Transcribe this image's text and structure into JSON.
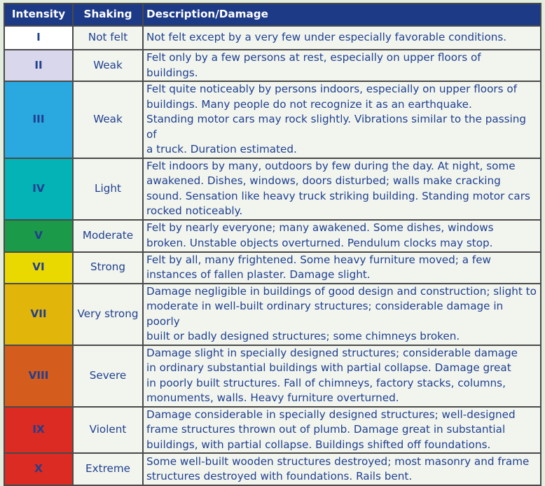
{
  "headers": {
    "intensity": "Intensity",
    "shaking": "Shaking",
    "description": "Description/Damage"
  },
  "rows": [
    {
      "intensity": "I",
      "shaking": "Not felt",
      "color": "#ffffff",
      "description": "Not felt except by a very few under especially favorable conditions."
    },
    {
      "intensity": "II",
      "shaking": "Weak",
      "color": "#d9d7ec",
      "description": "Felt only by a few persons at rest, especially on upper floors of\nbuildings."
    },
    {
      "intensity": "III",
      "shaking": "Weak",
      "color": "#2aa8e0",
      "description": "Felt quite noticeably by persons indoors, especially on upper floors of\nbuildings. Many people do not recognize it as an earthquake.\nStanding motor cars may rock slightly. Vibrations similar to the passing of\na truck. Duration estimated."
    },
    {
      "intensity": "IV",
      "shaking": "Light",
      "color": "#04b3b6",
      "description": "Felt indoors by many, outdoors by few during the day. At night, some\nawakened. Dishes, windows, doors disturbed; walls make cracking\nsound. Sensation like heavy truck striking building. Standing motor cars\nrocked noticeably."
    },
    {
      "intensity": "V",
      "shaking": "Moderate",
      "color": "#1b9a49",
      "description": "Felt by nearly everyone; many awakened. Some dishes, windows\nbroken. Unstable objects overturned. Pendulum clocks may stop."
    },
    {
      "intensity": "VI",
      "shaking": "Strong",
      "color": "#e9d900",
      "description": "Felt by all, many frightened. Some heavy furniture moved; a few\ninstances of fallen plaster. Damage slight."
    },
    {
      "intensity": "VII",
      "shaking": "Very strong",
      "color": "#e2b50b",
      "description": "Damage negligible in buildings of good design and construction; slight to\nmoderate in well-built ordinary structures; considerable damage in poorly\nbuilt or badly designed structures; some chimneys broken."
    },
    {
      "intensity": "VIII",
      "shaking": "Severe",
      "color": "#d45c1d",
      "description": "Damage slight in specially designed structures; considerable damage\nin ordinary substantial buildings with partial collapse. Damage great\nin poorly built structures. Fall of chimneys, factory stacks, columns,\nmonuments, walls. Heavy furniture overturned."
    },
    {
      "intensity": "IX",
      "shaking": "Violent",
      "color": "#db2b22",
      "description": "Damage considerable in specially designed structures; well-designed\nframe structures thrown out of plumb. Damage great in substantial\nbuildings, with partial collapse. Buildings shifted off foundations."
    },
    {
      "intensity": "X",
      "shaking": "Extreme",
      "color": "#db2b22",
      "description": "Some well-built wooden structures destroyed; most masonry and frame\nstructures destroyed with foundations. Rails bent."
    }
  ]
}
